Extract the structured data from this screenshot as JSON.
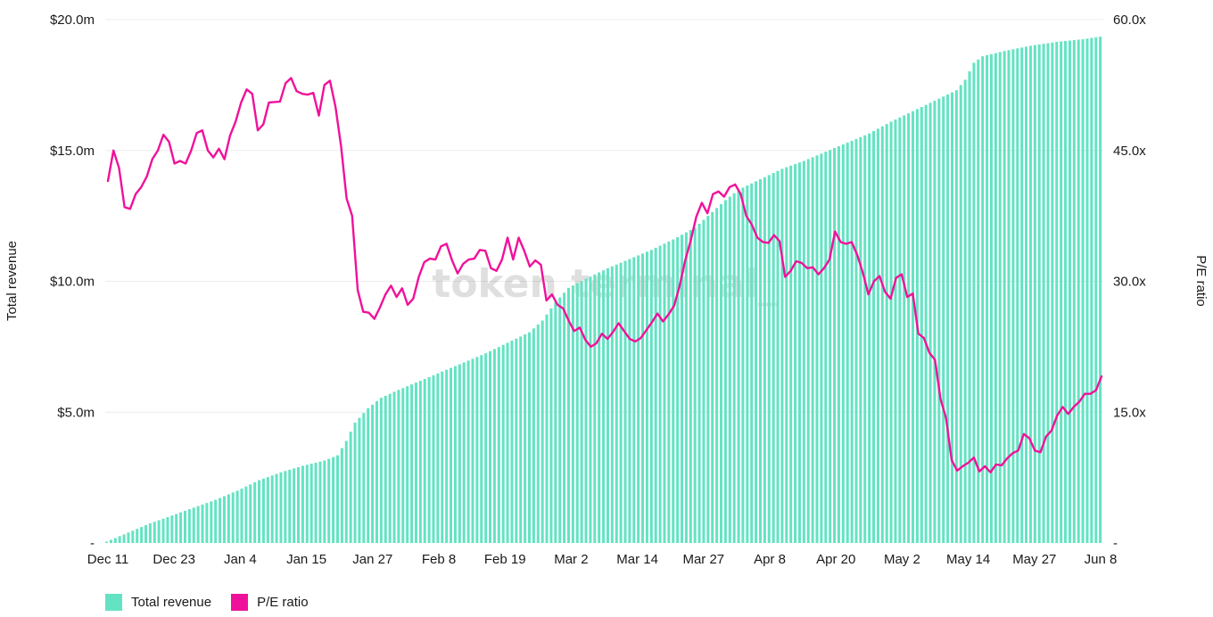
{
  "watermark": "token terminal_",
  "chart_data": {
    "type": "bar+line",
    "ylabel_left": "Total revenue",
    "ylabel_right": "P/E ratio",
    "y_left_ticks": [
      "-",
      "$5.0m",
      "$10.0m",
      "$15.0m",
      "$20.0m"
    ],
    "y_left_range": [
      0,
      20
    ],
    "y_left_unit": "$m",
    "y_right_ticks": [
      "-",
      "15.0x",
      "30.0x",
      "45.0x",
      "60.0x"
    ],
    "y_right_range": [
      0,
      60
    ],
    "x_tick_labels": [
      "Dec 11",
      "Dec 23",
      "Jan 4",
      "Jan 15",
      "Jan 27",
      "Feb 8",
      "Feb 19",
      "Mar 2",
      "Mar 14",
      "Mar 27",
      "Apr 8",
      "Apr 20",
      "May 2",
      "May 14",
      "May 27",
      "Jun 8"
    ],
    "grid": true,
    "legend_position": "bottom-left",
    "colors": {
      "bars": "#64e3c3",
      "line": "#f0119a"
    },
    "series": [
      {
        "name": "Total revenue",
        "type": "bar",
        "axis": "left",
        "anchors_day_value": [
          [
            0,
            0.05
          ],
          [
            5,
            0.4
          ],
          [
            10,
            0.75
          ],
          [
            15,
            1.05
          ],
          [
            20,
            1.35
          ],
          [
            25,
            1.65
          ],
          [
            30,
            2.0
          ],
          [
            35,
            2.4
          ],
          [
            40,
            2.7
          ],
          [
            45,
            2.95
          ],
          [
            50,
            3.15
          ],
          [
            53,
            3.35
          ],
          [
            55,
            3.9
          ],
          [
            57,
            4.6
          ],
          [
            60,
            5.15
          ],
          [
            63,
            5.55
          ],
          [
            67,
            5.85
          ],
          [
            72,
            6.2
          ],
          [
            77,
            6.55
          ],
          [
            82,
            6.9
          ],
          [
            87,
            7.25
          ],
          [
            92,
            7.65
          ],
          [
            97,
            8.05
          ],
          [
            100,
            8.5
          ],
          [
            103,
            9.2
          ],
          [
            106,
            9.75
          ],
          [
            110,
            10.1
          ],
          [
            115,
            10.5
          ],
          [
            120,
            10.85
          ],
          [
            125,
            11.2
          ],
          [
            130,
            11.6
          ],
          [
            135,
            12.05
          ],
          [
            138,
            12.5
          ],
          [
            142,
            13.1
          ],
          [
            145,
            13.5
          ],
          [
            150,
            13.9
          ],
          [
            155,
            14.3
          ],
          [
            160,
            14.6
          ],
          [
            165,
            14.95
          ],
          [
            170,
            15.3
          ],
          [
            175,
            15.65
          ],
          [
            180,
            16.1
          ],
          [
            185,
            16.5
          ],
          [
            190,
            16.9
          ],
          [
            195,
            17.3
          ],
          [
            197,
            17.7
          ],
          [
            199,
            18.35
          ],
          [
            201,
            18.6
          ],
          [
            206,
            18.8
          ],
          [
            212,
            19.0
          ],
          [
            218,
            19.15
          ],
          [
            224,
            19.25
          ],
          [
            228,
            19.35
          ]
        ]
      },
      {
        "name": "P/E ratio",
        "type": "line",
        "axis": "right",
        "anchors_day_value": [
          [
            0,
            41.5
          ],
          [
            1,
            45.0
          ],
          [
            2,
            43.0
          ],
          [
            3,
            38.5
          ],
          [
            4,
            38.3
          ],
          [
            5,
            40.0
          ],
          [
            6,
            40.8
          ],
          [
            7,
            42.0
          ],
          [
            8,
            44.0
          ],
          [
            9,
            45.0
          ],
          [
            10,
            46.8
          ],
          [
            11,
            46.0
          ],
          [
            12,
            43.5
          ],
          [
            13,
            43.8
          ],
          [
            14,
            43.5
          ],
          [
            15,
            45.0
          ],
          [
            16,
            47.0
          ],
          [
            17,
            47.3
          ],
          [
            18,
            45.0
          ],
          [
            19,
            44.2
          ],
          [
            20,
            45.2
          ],
          [
            21,
            44.0
          ],
          [
            22,
            46.7
          ],
          [
            23,
            48.3
          ],
          [
            24,
            50.5
          ],
          [
            25,
            52.0
          ],
          [
            26,
            51.5
          ],
          [
            27,
            47.3
          ],
          [
            28,
            48.0
          ],
          [
            29,
            50.5
          ],
          [
            31,
            50.6
          ],
          [
            32,
            52.7
          ],
          [
            33,
            53.3
          ],
          [
            34,
            51.8
          ],
          [
            35,
            51.5
          ],
          [
            36,
            51.4
          ],
          [
            37,
            51.6
          ],
          [
            38,
            49.0
          ],
          [
            39,
            52.5
          ],
          [
            40,
            53.0
          ],
          [
            41,
            50.0
          ],
          [
            42,
            45.5
          ],
          [
            43,
            39.5
          ],
          [
            44,
            37.5
          ],
          [
            45,
            29.0
          ],
          [
            46,
            26.5
          ],
          [
            47,
            26.4
          ],
          [
            48,
            25.7
          ],
          [
            49,
            27.0
          ],
          [
            50,
            28.5
          ],
          [
            51,
            29.5
          ],
          [
            52,
            28.2
          ],
          [
            53,
            29.2
          ],
          [
            54,
            27.3
          ],
          [
            55,
            28.0
          ],
          [
            56,
            30.5
          ],
          [
            57,
            32.2
          ],
          [
            58,
            32.6
          ],
          [
            59,
            32.5
          ],
          [
            60,
            34.0
          ],
          [
            61,
            34.3
          ],
          [
            62,
            32.4
          ],
          [
            63,
            30.9
          ],
          [
            64,
            32.0
          ],
          [
            65,
            32.5
          ],
          [
            66,
            32.6
          ],
          [
            67,
            33.6
          ],
          [
            68,
            33.5
          ],
          [
            69,
            31.5
          ],
          [
            70,
            31.2
          ],
          [
            71,
            32.5
          ],
          [
            72,
            35.0
          ],
          [
            73,
            32.5
          ],
          [
            74,
            35.0
          ],
          [
            75,
            33.5
          ],
          [
            76,
            31.7
          ],
          [
            77,
            32.4
          ],
          [
            78,
            31.9
          ],
          [
            79,
            27.8
          ],
          [
            80,
            28.5
          ],
          [
            81,
            27.3
          ],
          [
            82,
            26.9
          ],
          [
            83,
            25.5
          ],
          [
            84,
            24.3
          ],
          [
            85,
            24.7
          ],
          [
            86,
            23.3
          ],
          [
            87,
            22.5
          ],
          [
            88,
            22.9
          ],
          [
            89,
            24.0
          ],
          [
            90,
            23.4
          ],
          [
            91,
            24.2
          ],
          [
            92,
            25.2
          ],
          [
            93,
            24.3
          ],
          [
            94,
            23.4
          ],
          [
            95,
            23.1
          ],
          [
            96,
            23.5
          ],
          [
            97,
            24.4
          ],
          [
            98,
            25.3
          ],
          [
            99,
            26.3
          ],
          [
            100,
            25.4
          ],
          [
            101,
            26.2
          ],
          [
            102,
            27.2
          ],
          [
            103,
            29.5
          ],
          [
            104,
            32.4
          ],
          [
            105,
            34.7
          ],
          [
            106,
            37.4
          ],
          [
            107,
            39.0
          ],
          [
            108,
            37.8
          ],
          [
            109,
            40.0
          ],
          [
            110,
            40.3
          ],
          [
            111,
            39.7
          ],
          [
            112,
            40.8
          ],
          [
            113,
            41.1
          ],
          [
            114,
            40.0
          ],
          [
            115,
            37.5
          ],
          [
            116,
            36.5
          ],
          [
            117,
            35.0
          ],
          [
            118,
            34.5
          ],
          [
            119,
            34.4
          ],
          [
            120,
            35.3
          ],
          [
            121,
            34.6
          ],
          [
            122,
            30.5
          ],
          [
            123,
            31.2
          ],
          [
            124,
            32.3
          ],
          [
            125,
            32.1
          ],
          [
            126,
            31.5
          ],
          [
            127,
            31.6
          ],
          [
            128,
            30.8
          ],
          [
            129,
            31.5
          ],
          [
            130,
            32.5
          ],
          [
            131,
            35.7
          ],
          [
            132,
            34.5
          ],
          [
            133,
            34.3
          ],
          [
            134,
            34.5
          ],
          [
            135,
            33.0
          ],
          [
            136,
            31.0
          ],
          [
            137,
            28.5
          ],
          [
            138,
            30.0
          ],
          [
            139,
            30.6
          ],
          [
            140,
            28.8
          ],
          [
            141,
            28.0
          ],
          [
            142,
            30.4
          ],
          [
            143,
            30.8
          ],
          [
            144,
            28.2
          ],
          [
            145,
            28.6
          ],
          [
            146,
            24.0
          ],
          [
            147,
            23.5
          ],
          [
            148,
            21.8
          ],
          [
            149,
            21.0
          ],
          [
            150,
            16.5
          ],
          [
            151,
            14.3
          ],
          [
            152,
            9.5
          ],
          [
            153,
            8.3
          ],
          [
            154,
            8.8
          ],
          [
            155,
            9.2
          ],
          [
            156,
            9.8
          ],
          [
            157,
            8.2
          ],
          [
            158,
            8.8
          ],
          [
            159,
            8.1
          ],
          [
            160,
            9.0
          ],
          [
            161,
            8.9
          ],
          [
            162,
            9.7
          ],
          [
            163,
            10.3
          ],
          [
            164,
            10.6
          ],
          [
            165,
            12.5
          ],
          [
            166,
            12.0
          ],
          [
            167,
            10.6
          ],
          [
            168,
            10.4
          ],
          [
            169,
            12.2
          ],
          [
            170,
            12.9
          ],
          [
            171,
            14.6
          ],
          [
            172,
            15.6
          ],
          [
            173,
            14.8
          ],
          [
            174,
            15.6
          ],
          [
            175,
            16.2
          ],
          [
            176,
            17.1
          ],
          [
            177,
            17.1
          ],
          [
            178,
            17.5
          ],
          [
            179,
            19.1
          ]
        ]
      }
    ]
  }
}
